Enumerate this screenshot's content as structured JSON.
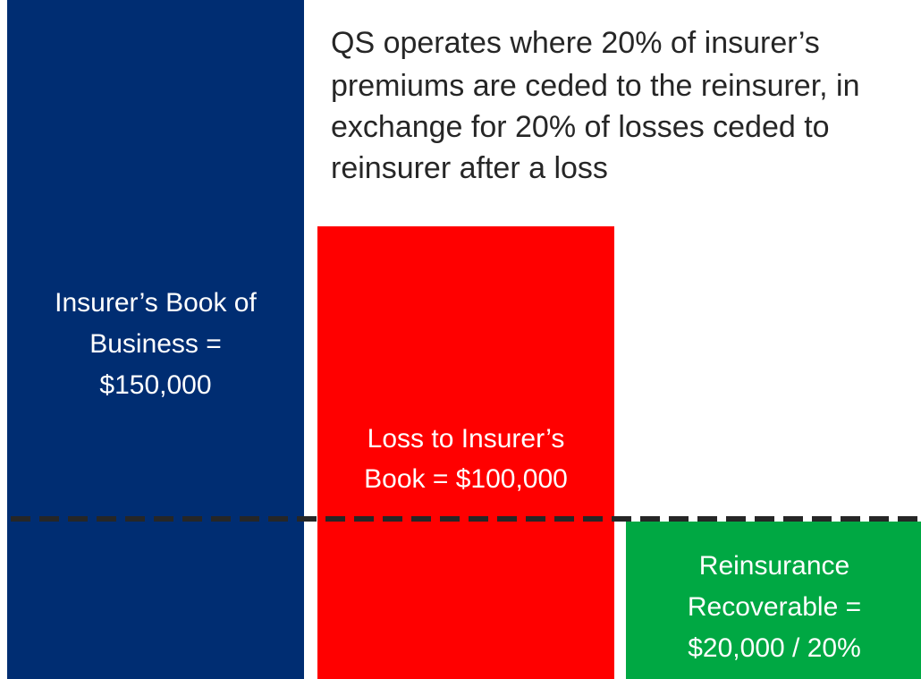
{
  "note": {
    "lines": [
      "QS operates where 20% of insurer’s",
      "premiums are ceded to the reinsurer, in",
      "exchange for 20% of losses ceded to",
      "reinsurer after a loss"
    ]
  },
  "boxes": [
    {
      "lines": [
        "Insurer’s Book of",
        "Business =",
        "$150,000"
      ]
    },
    {
      "lines": [
        "Loss to Insurer’s",
        "Book = $100,000"
      ]
    },
    {
      "lines": [
        "Reinsurance",
        "Recoverable =",
        "$20,000 / 20%"
      ]
    }
  ]
}
